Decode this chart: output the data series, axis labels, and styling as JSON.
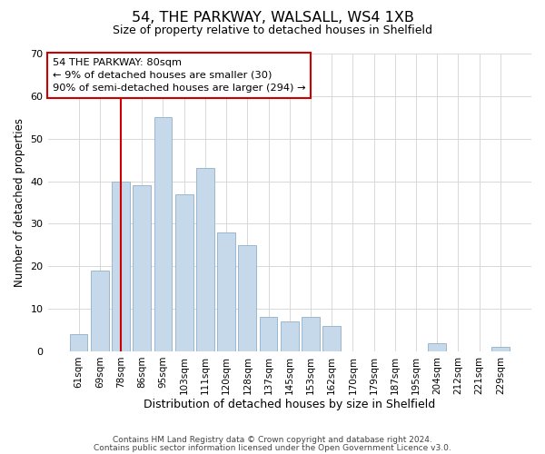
{
  "title": "54, THE PARKWAY, WALSALL, WS4 1XB",
  "subtitle": "Size of property relative to detached houses in Shelfield",
  "xlabel": "Distribution of detached houses by size in Shelfield",
  "ylabel": "Number of detached properties",
  "bar_labels": [
    "61sqm",
    "69sqm",
    "78sqm",
    "86sqm",
    "95sqm",
    "103sqm",
    "111sqm",
    "120sqm",
    "128sqm",
    "137sqm",
    "145sqm",
    "153sqm",
    "162sqm",
    "170sqm",
    "179sqm",
    "187sqm",
    "195sqm",
    "204sqm",
    "212sqm",
    "221sqm",
    "229sqm"
  ],
  "bar_heights": [
    4,
    19,
    40,
    39,
    55,
    37,
    43,
    28,
    25,
    8,
    7,
    8,
    6,
    0,
    0,
    0,
    0,
    2,
    0,
    0,
    1
  ],
  "bar_color": "#c6d9ea",
  "bar_edge_color": "#9ab8d0",
  "grid_color": "#d8d8d8",
  "vline_index": 2,
  "vline_color": "#cc0000",
  "ylim": [
    0,
    70
  ],
  "yticks": [
    0,
    10,
    20,
    30,
    40,
    50,
    60,
    70
  ],
  "annotation_title": "54 THE PARKWAY: 80sqm",
  "annotation_line1": "← 9% of detached houses are smaller (30)",
  "annotation_line2": "90% of semi-detached houses are larger (294) →",
  "annotation_box_color": "#ffffff",
  "annotation_box_edge": "#cc0000",
  "footnote1": "Contains HM Land Registry data © Crown copyright and database right 2024.",
  "footnote2": "Contains public sector information licensed under the Open Government Licence v3.0."
}
